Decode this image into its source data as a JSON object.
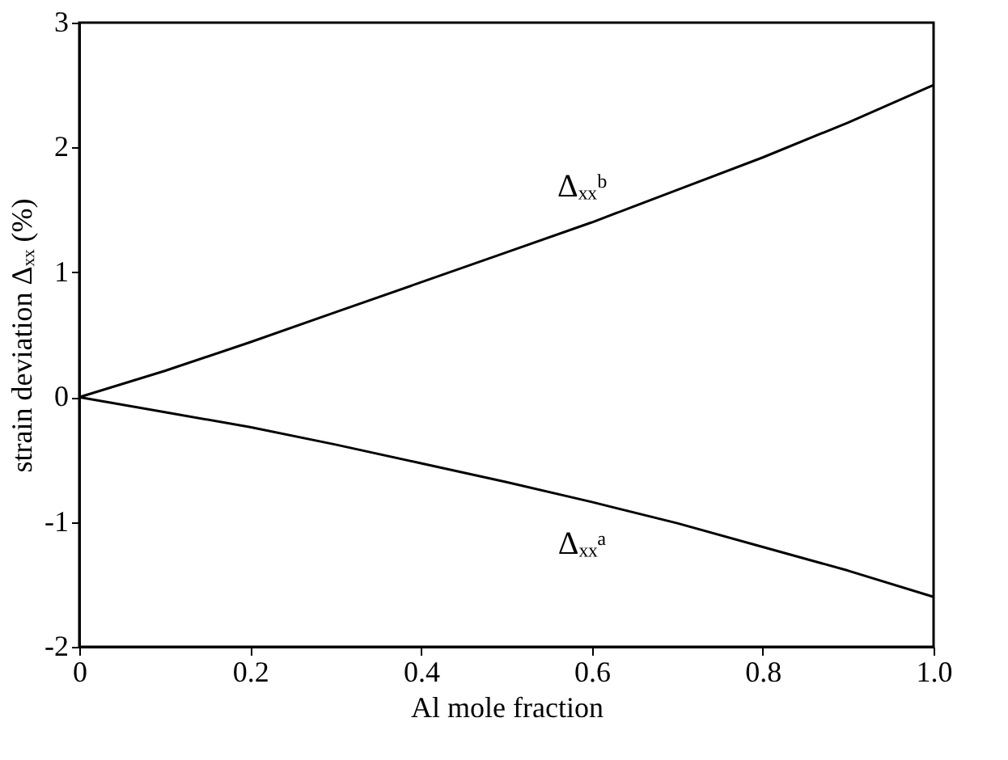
{
  "chart_data": {
    "type": "line",
    "xlabel": "Al mole fraction",
    "ylabel": "strain deviation Δₓₓ (%)",
    "x": [
      0,
      0.1,
      0.2,
      0.3,
      0.4,
      0.5,
      0.6,
      0.7,
      0.8,
      0.9,
      1.0
    ],
    "series": [
      {
        "name": "Δₓₓᵇ",
        "color": "#000000",
        "values": [
          0,
          0.21,
          0.44,
          0.68,
          0.92,
          1.16,
          1.4,
          1.66,
          1.92,
          2.2,
          2.5
        ]
      },
      {
        "name": "Δₓₓᵃ",
        "color": "#000000",
        "values": [
          0,
          -0.12,
          -0.24,
          -0.38,
          -0.53,
          -0.68,
          -0.84,
          -1.01,
          -1.2,
          -1.39,
          -1.6
        ]
      }
    ],
    "xlim": [
      0,
      1
    ],
    "ylim": [
      -2,
      3
    ],
    "xticks": [
      0,
      0.2,
      0.4,
      0.6,
      0.8,
      {
        "value": 1,
        "label": "1.0"
      }
    ],
    "yticks": [
      -2,
      -1,
      0,
      1,
      2,
      3
    ],
    "grid": false,
    "legend": false,
    "marker": "none",
    "line_style": "solid"
  }
}
